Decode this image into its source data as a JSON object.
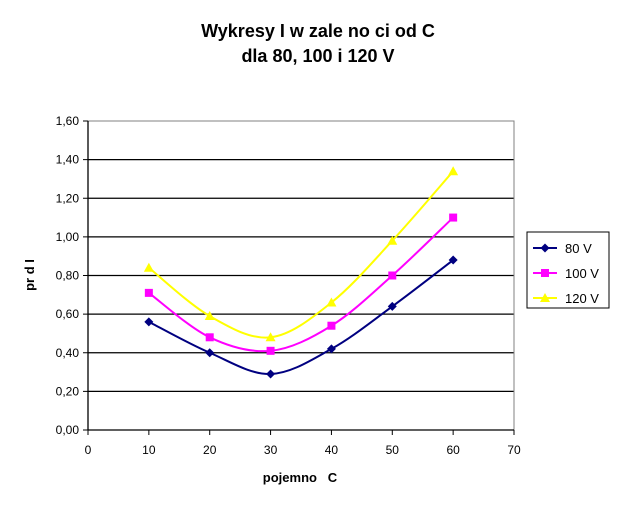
{
  "chart_data": {
    "type": "line",
    "title_lines": [
      "Wykresy I w zale  no  ci od C",
      "dla 80, 100 i 120 V"
    ],
    "xlabel": "pojemno   C",
    "ylabel": "pr d I",
    "x": [
      10,
      20,
      30,
      40,
      50,
      60
    ],
    "xlim": [
      0,
      70
    ],
    "ylim": [
      0,
      1.6
    ],
    "x_ticks": [
      "0",
      "10",
      "20",
      "30",
      "40",
      "50",
      "60",
      "70"
    ],
    "y_ticks": [
      "0,00",
      "0,20",
      "0,40",
      "0,60",
      "0,80",
      "1,00",
      "1,20",
      "1,40",
      "1,60"
    ],
    "grid": true,
    "legend_position": "right",
    "series": [
      {
        "name": "80 V",
        "marker": "diamond",
        "color": "#000080",
        "values": [
          0.56,
          0.4,
          0.29,
          0.42,
          0.64,
          0.88
        ]
      },
      {
        "name": "100 V",
        "marker": "square",
        "color": "#ff00ff",
        "values": [
          0.71,
          0.48,
          0.41,
          0.54,
          0.8,
          1.1
        ]
      },
      {
        "name": "120 V",
        "marker": "triangle",
        "color": "#ffff00",
        "values": [
          0.84,
          0.59,
          0.48,
          0.66,
          0.98,
          1.34
        ]
      }
    ]
  }
}
